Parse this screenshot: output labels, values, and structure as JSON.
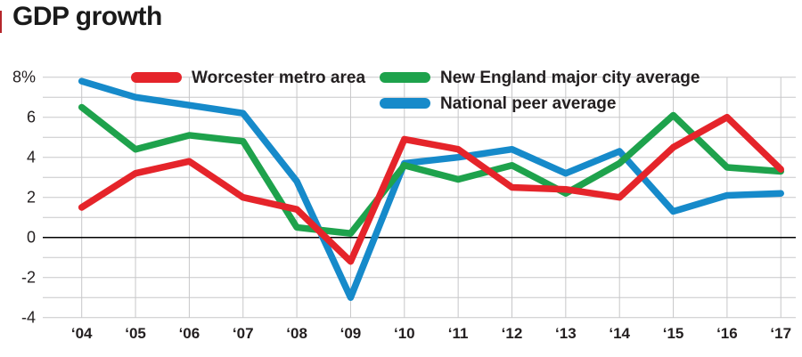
{
  "title": "GDP growth",
  "legend": [
    {
      "label": "Worcester metro area",
      "color": "#e5242a"
    },
    {
      "label": "New England major city average",
      "color": "#1ea24c"
    },
    {
      "label": "National peer average",
      "color": "#168aca"
    }
  ],
  "colors": {
    "grid": "#c7c7c9",
    "zero_line": "#000000",
    "text": "#231f20",
    "background": "#ffffff",
    "accent_bar": "#b5262b"
  },
  "chart_data": {
    "type": "line",
    "title": "GDP growth",
    "categories": [
      "‘04",
      "‘05",
      "‘06",
      "‘07",
      "‘08",
      "‘09",
      "‘10",
      "‘11",
      "‘12",
      "‘13",
      "‘14",
      "‘15",
      "‘16",
      "‘17"
    ],
    "series": [
      {
        "name": "Worcester metro area",
        "color": "#e5242a",
        "values": [
          1.5,
          3.2,
          3.8,
          2.0,
          1.4,
          -1.2,
          4.9,
          4.4,
          2.5,
          2.4,
          2.0,
          4.5,
          6.0,
          3.4
        ]
      },
      {
        "name": "New England major city average",
        "color": "#1ea24c",
        "values": [
          6.5,
          4.4,
          5.1,
          4.8,
          0.5,
          0.2,
          3.6,
          2.9,
          3.6,
          2.2,
          3.7,
          6.1,
          3.5,
          3.3
        ]
      },
      {
        "name": "National peer average",
        "color": "#168aca",
        "values": [
          7.8,
          7.0,
          6.6,
          6.2,
          2.8,
          -3.0,
          3.7,
          4.0,
          4.4,
          3.2,
          4.3,
          1.3,
          2.1,
          2.2
        ]
      }
    ],
    "xlabel": "",
    "ylabel": "",
    "ylim": [
      -4,
      8
    ],
    "y_ticks": [
      {
        "value": 8,
        "label": "8%"
      },
      {
        "value": 6,
        "label": "6"
      },
      {
        "value": 4,
        "label": "4"
      },
      {
        "value": 2,
        "label": "2"
      },
      {
        "value": 0,
        "label": "0"
      },
      {
        "value": -2,
        "label": "-2"
      },
      {
        "value": -4,
        "label": "-4"
      }
    ],
    "grid": true,
    "legend_position": "top"
  }
}
